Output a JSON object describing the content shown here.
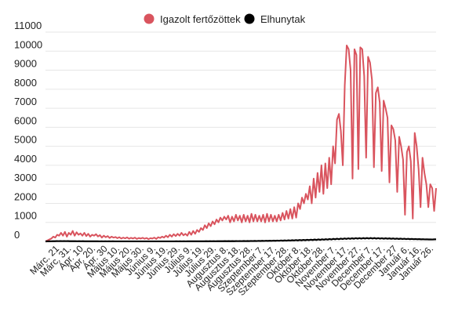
{
  "chart_data": {
    "type": "line",
    "title": "",
    "xlabel": "",
    "ylabel": "",
    "ylim": [
      0,
      11000
    ],
    "yticks": [
      0,
      1000,
      2000,
      3000,
      4000,
      5000,
      6000,
      7000,
      8000,
      9000,
      10000,
      11000
    ],
    "grid": true,
    "legend_position": "top-center",
    "x_tick_labels": [
      "Márc. 21",
      "Márc. 31.",
      "Ápr. 10",
      "Ápr. 20.",
      "Ápr. 30",
      "Május 10.",
      "Május 20.",
      "Május 30.",
      "Június 9.",
      "Június 19.",
      "Június 29.",
      "Július 9.",
      "Július 19.",
      "Július 29.",
      "Augusztus 8.",
      "Augusztus 18.",
      "Augusztus 28.",
      "Szeptember 7.",
      "Szeptember 17.",
      "Szeptember 28.",
      "Október 8.",
      "Október 18.",
      "Október 28.",
      "November 7.",
      "November 17.",
      "November 27.",
      "December 7.",
      "December 17.",
      "December 27",
      "Január 6.",
      "Január 16.",
      "Január 26."
    ],
    "series": [
      {
        "name": "Igazolt fertőzöttek",
        "color": "#d9545e",
        "values": [
          0,
          50,
          100,
          150,
          250,
          200,
          350,
          300,
          450,
          300,
          500,
          250,
          450,
          350,
          550,
          300,
          480,
          350,
          420,
          300,
          450,
          280,
          400,
          250,
          350,
          300,
          380,
          260,
          330,
          200,
          300,
          220,
          280,
          180,
          250,
          200,
          230,
          170,
          220,
          150,
          200,
          160,
          210,
          140,
          190,
          150,
          200,
          130,
          180,
          150,
          190,
          140,
          180,
          120,
          170,
          150,
          200,
          130,
          220,
          180,
          250,
          200,
          300,
          220,
          350,
          250,
          380,
          280,
          400,
          300,
          450,
          320,
          400,
          300,
          500,
          350,
          550,
          400,
          600,
          500,
          700,
          600,
          850,
          700,
          950,
          800,
          1050,
          900,
          1150,
          1000,
          1250,
          1100,
          1300,
          1150,
          1350,
          1000,
          1300,
          1050,
          1400,
          1100,
          1350,
          1000,
          1400,
          1050,
          1350,
          1000,
          1450,
          1050,
          1400,
          1050,
          1350,
          1050,
          1400,
          1000,
          1450,
          1050,
          1400,
          1050,
          1350,
          1050,
          1400,
          1100,
          1500,
          1150,
          1600,
          1200,
          1700,
          1200,
          1800,
          1250,
          2000,
          1700,
          2300,
          2000,
          2500,
          2200,
          2900,
          2000,
          3300,
          2300,
          3600,
          2600,
          4000,
          2500,
          4100,
          2800,
          4400,
          3000,
          5000,
          4100,
          6400,
          6700,
          5800,
          4000,
          8200,
          10300,
          10100,
          9000,
          3300,
          10100,
          9800,
          3800,
          10200,
          10100,
          8700,
          4400,
          9700,
          9400,
          8500,
          3900,
          7800,
          8100,
          7300,
          3700,
          7400,
          7000,
          6500,
          3100,
          6100,
          5900,
          5300,
          2600,
          5500,
          5000,
          4300,
          1400,
          4700,
          5000,
          4200,
          1200,
          5700,
          5000,
          3800,
          1800,
          4400,
          3600,
          3000,
          1800,
          3000,
          2800,
          1600,
          2800
        ]
      },
      {
        "name": "Elhunytak",
        "color": "#000000",
        "values": [
          0,
          2,
          5,
          8,
          12,
          10,
          14,
          12,
          16,
          13,
          15,
          12,
          14,
          10,
          12,
          9,
          11,
          8,
          10,
          7,
          9,
          6,
          8,
          5,
          7,
          5,
          6,
          4,
          5,
          3,
          5,
          3,
          4,
          3,
          4,
          3,
          4,
          2,
          3,
          2,
          3,
          2,
          3,
          2,
          3,
          2,
          3,
          2,
          3,
          2,
          3,
          2,
          3,
          2,
          3,
          2,
          3,
          2,
          3,
          2,
          3,
          2,
          3,
          2,
          3,
          2,
          3,
          2,
          3,
          2,
          4,
          3,
          4,
          3,
          5,
          3,
          5,
          4,
          6,
          4,
          6,
          5,
          7,
          5,
          8,
          6,
          9,
          6,
          10,
          7,
          11,
          8,
          12,
          9,
          13,
          9,
          14,
          10,
          15,
          10,
          16,
          11,
          17,
          12,
          18,
          13,
          20,
          14,
          22,
          15,
          24,
          17,
          26,
          19,
          28,
          21,
          30,
          23,
          33,
          25,
          36,
          27,
          40,
          30,
          44,
          33,
          48,
          36,
          52,
          40,
          57,
          44,
          62,
          48,
          68,
          52,
          74,
          57,
          80,
          62,
          86,
          67,
          92,
          72,
          98,
          77,
          104,
          82,
          110,
          88,
          118,
          95,
          126,
          102,
          134,
          110,
          140,
          118,
          148,
          125,
          155,
          130,
          160,
          135,
          165,
          140,
          170,
          145,
          172,
          148,
          175,
          150,
          178,
          152,
          180,
          150,
          176,
          148,
          172,
          145,
          168,
          142,
          165,
          140,
          160,
          136,
          155,
          132,
          150,
          128,
          145,
          125,
          140,
          122,
          135,
          118,
          130,
          115,
          125,
          112,
          120,
          108,
          115,
          105,
          110,
          102,
          105,
          100,
          108,
          110
        ]
      }
    ]
  }
}
